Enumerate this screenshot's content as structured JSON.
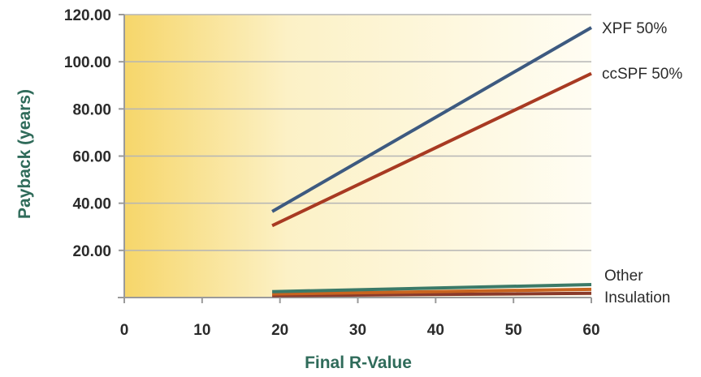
{
  "chart_data": {
    "type": "line",
    "xlabel": "Final R-Value",
    "ylabel": "Payback (years)",
    "xlim": [
      0,
      60
    ],
    "ylim": [
      0,
      120
    ],
    "x_ticks": [
      "0",
      "10",
      "20",
      "30",
      "40",
      "50",
      "60"
    ],
    "y_ticks": [
      "20.00",
      "40.00",
      "60.00",
      "80.00",
      "100.00",
      "120.00"
    ],
    "grid": true,
    "series": [
      {
        "name": "XPF 50%",
        "color": "#3d5a80",
        "x": [
          19,
          60
        ],
        "y": [
          36.5,
          114.5
        ]
      },
      {
        "name": "ccSPF 50%",
        "color": "#a83a22",
        "x": [
          19,
          60
        ],
        "y": [
          30.5,
          95
        ]
      },
      {
        "name": "Other Insulation",
        "color": "#3b7a68",
        "x": [
          19,
          60
        ],
        "y": [
          2.5,
          5.5
        ]
      },
      {
        "name": "",
        "color": "#c8641f",
        "x": [
          19,
          60
        ],
        "y": [
          1.5,
          3.5
        ]
      },
      {
        "name": "",
        "color": "#8a3a2a",
        "x": [
          19,
          60
        ],
        "y": [
          0.8,
          1.8
        ]
      }
    ],
    "series_labels": [
      "XPF 50%",
      "ccSPF 50%",
      "Other",
      "Insulation"
    ]
  }
}
